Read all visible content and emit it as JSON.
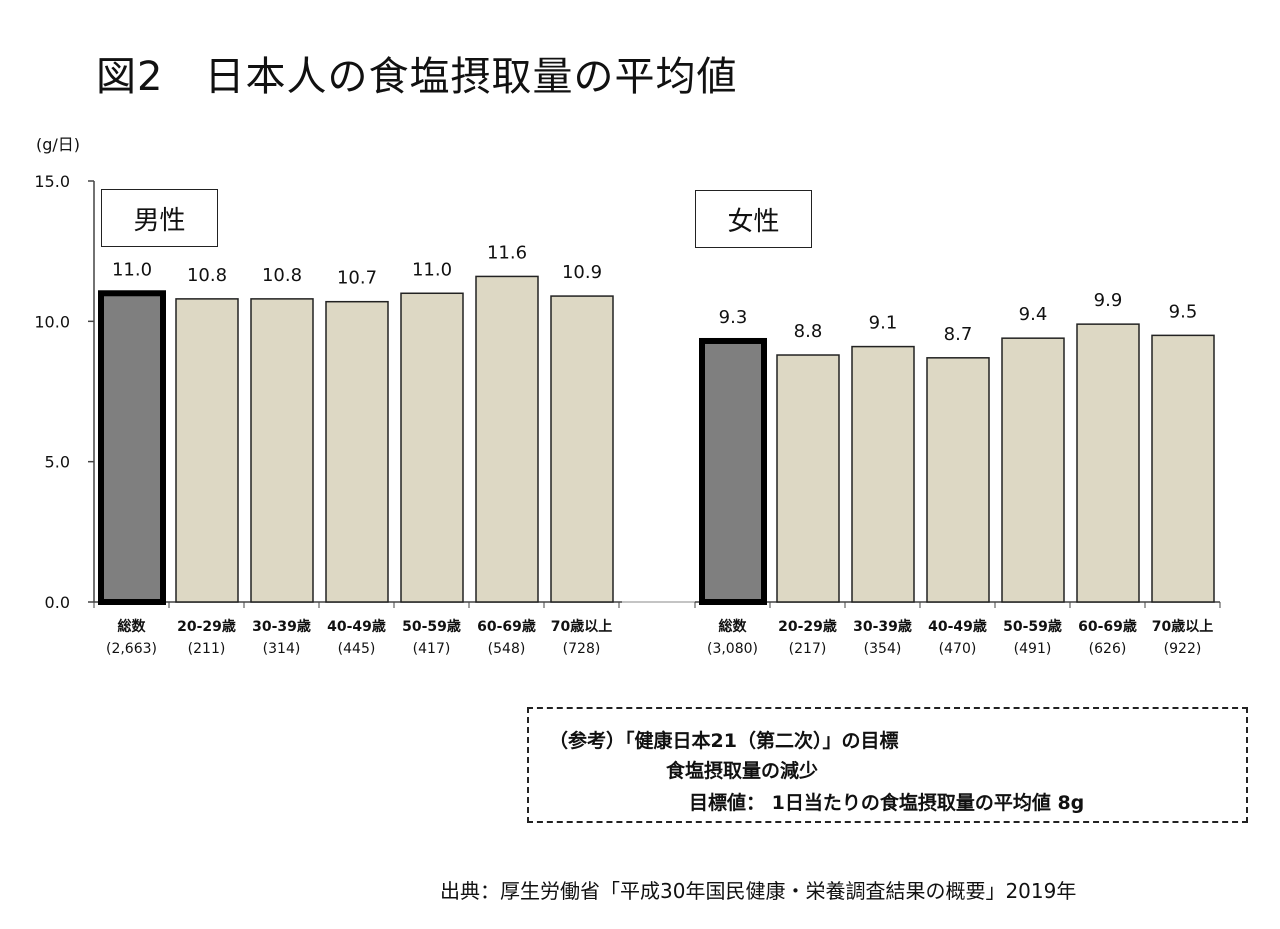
{
  "title": "図2　日本人の食塩摂取量の平均値",
  "chart_data": {
    "type": "bar",
    "ylabel": "(g/日)",
    "ylim": [
      0,
      15
    ],
    "yticks": [
      "15.0",
      "10.0",
      "5.0",
      "0.0"
    ],
    "groups": [
      {
        "name": "男性",
        "categories": [
          "総数",
          "20-29歳",
          "30-39歳",
          "40-49歳",
          "50-59歳",
          "60-69歳",
          "70歳以上"
        ],
        "counts": [
          "(2,663)",
          "(211)",
          "(314)",
          "(445)",
          "(417)",
          "(548)",
          "(728)"
        ],
        "values": [
          11.0,
          10.8,
          10.8,
          10.7,
          11.0,
          11.6,
          10.9
        ],
        "labels": [
          "11.0",
          "10.8",
          "10.8",
          "10.7",
          "11.0",
          "11.6",
          "10.9"
        ]
      },
      {
        "name": "女性",
        "categories": [
          "総数",
          "20-29歳",
          "30-39歳",
          "40-49歳",
          "50-59歳",
          "60-69歳",
          "70歳以上"
        ],
        "counts": [
          "(3,080)",
          "(217)",
          "(354)",
          "(470)",
          "(491)",
          "(626)",
          "(922)"
        ],
        "values": [
          9.3,
          8.8,
          9.1,
          8.7,
          9.4,
          9.9,
          9.5
        ],
        "labels": [
          "9.3",
          "8.8",
          "9.1",
          "8.7",
          "9.4",
          "9.9",
          "9.5"
        ]
      }
    ],
    "colors": {
      "total": "#7f7f7f",
      "age": "#ddd8c4",
      "border": "#222222"
    },
    "grid": false
  },
  "note": {
    "line1": "（参考）「健康日本21（第二次）」の目標",
    "line2": "食塩摂取量の減少",
    "line3": "目標値：  1日当たりの食塩摂取量の平均値   8g"
  },
  "source": "出典：厚生労働省「平成30年国民健康・栄養調査結果の概要」2019年"
}
